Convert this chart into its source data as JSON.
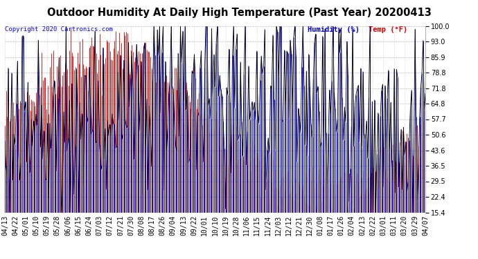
{
  "title": "Outdoor Humidity At Daily High Temperature (Past Year) 20200413",
  "copyright": "Copyright 2020 Cartronics.com",
  "legend_humidity": "Humidity (%)",
  "legend_temp": "Temp (°F)",
  "yticks": [
    15.4,
    22.4,
    29.5,
    36.5,
    43.6,
    50.6,
    57.7,
    64.8,
    71.8,
    78.8,
    85.9,
    93.0,
    100.0
  ],
  "ymin": 15.4,
  "ymax": 100.0,
  "xlabels": [
    "04/13",
    "04/22",
    "05/01",
    "05/10",
    "05/19",
    "05/28",
    "06/06",
    "06/15",
    "06/24",
    "07/03",
    "07/12",
    "07/21",
    "07/30",
    "08/08",
    "08/17",
    "08/26",
    "09/04",
    "09/13",
    "09/22",
    "10/01",
    "10/10",
    "10/19",
    "10/28",
    "11/06",
    "11/15",
    "11/24",
    "12/03",
    "12/12",
    "12/21",
    "12/30",
    "01/08",
    "01/17",
    "01/26",
    "02/04",
    "02/13",
    "02/22",
    "03/01",
    "03/11",
    "03/20",
    "03/29",
    "04/07"
  ],
  "bg_color": "#ffffff",
  "grid_color": "#bbbbbb",
  "humidity_color": "#0000dd",
  "temp_color": "#dd0000",
  "black_color": "#000000",
  "title_fontsize": 10.5,
  "tick_fontsize": 7,
  "copyright_fontsize": 6.5,
  "legend_fontsize": 7.5
}
